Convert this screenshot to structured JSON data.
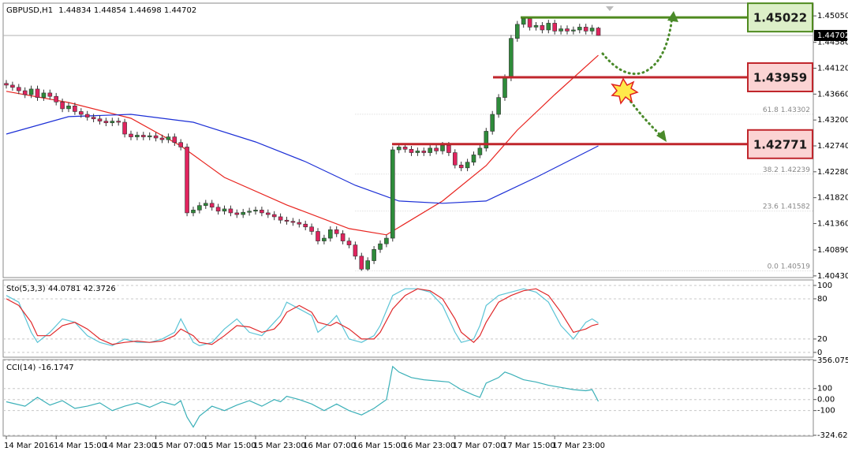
{
  "chart_data": [
    {
      "type": "candlestick",
      "title": "GBPUSD,H1",
      "categories": [
        "14 Mar 2016",
        null,
        null,
        null,
        null,
        null,
        null,
        null,
        "14 Mar 15:00",
        null,
        null,
        null,
        null,
        null,
        null,
        null,
        "14 Mar 23:00",
        null,
        null,
        null,
        null,
        null,
        null,
        null,
        "15 Mar 07:00",
        null,
        null,
        null,
        null,
        null,
        null,
        null,
        "15 Mar 15:00",
        null,
        null,
        null,
        null,
        null,
        null,
        null,
        "15 Mar 23:00",
        null,
        null,
        null,
        null,
        null,
        null,
        null,
        "16 Mar 07:00",
        null,
        null,
        null,
        null,
        null,
        null,
        null,
        "16 Mar 15:00",
        null,
        null,
        null,
        null,
        null,
        null,
        null,
        "16 Mar 23:00",
        null,
        null,
        null,
        null,
        null,
        null,
        null,
        "17 Mar 07:00",
        null,
        null,
        null,
        null,
        null,
        null,
        null,
        "17 Mar 15:00",
        null,
        null,
        null,
        null,
        null,
        null,
        null,
        "17 Mar 23:00",
        null,
        null,
        null,
        null,
        null,
        null,
        null
      ],
      "open": [
        1.4385,
        1.4382,
        1.4378,
        1.4372,
        1.4365,
        1.4375,
        1.436,
        1.4368,
        1.4362,
        1.4352,
        1.434,
        1.4345,
        1.4335,
        1.433,
        1.4325,
        1.4322,
        1.4318,
        1.4315,
        1.4318,
        1.4316,
        1.4295,
        1.429,
        1.4293,
        1.429,
        1.4292,
        1.4288,
        1.4285,
        1.429,
        1.428,
        1.4272,
        1.4155,
        1.416,
        1.4168,
        1.4172,
        1.4165,
        1.4158,
        1.4162,
        1.4155,
        1.4152,
        1.4156,
        1.4158,
        1.416,
        1.4155,
        1.4152,
        1.4148,
        1.4142,
        1.414,
        1.4138,
        1.4135,
        1.413,
        1.4122,
        1.4105,
        1.411,
        1.4125,
        1.4118,
        1.4105,
        1.4098,
        1.4078,
        1.4055,
        1.407,
        1.409,
        1.41,
        1.411,
        1.4267,
        1.4272,
        1.4268,
        1.4262,
        1.4265,
        1.4262,
        1.427,
        1.4265,
        1.4275,
        1.4262,
        1.424,
        1.4235,
        1.4245,
        1.4258,
        1.427,
        1.43,
        1.433,
        1.436,
        1.4395,
        1.4465,
        1.449,
        1.45,
        1.4485,
        1.4488,
        1.448,
        1.4492,
        1.4478,
        1.4482,
        1.4478,
        1.448,
        1.4485,
        1.4478,
        1.44834
      ],
      "high": [
        1.4391,
        1.4388,
        1.4384,
        1.4378,
        1.4381,
        1.4381,
        1.4374,
        1.4374,
        1.4368,
        1.4358,
        1.4351,
        1.4351,
        1.4341,
        1.4336,
        1.4331,
        1.4328,
        1.4324,
        1.4324,
        1.4324,
        1.4322,
        1.4301,
        1.4299,
        1.4299,
        1.4298,
        1.4298,
        1.4294,
        1.4296,
        1.4296,
        1.4286,
        1.4278,
        1.4166,
        1.4174,
        1.4178,
        1.4178,
        1.4171,
        1.4168,
        1.4168,
        1.4161,
        1.4162,
        1.4164,
        1.4166,
        1.4166,
        1.4161,
        1.4158,
        1.4154,
        1.4148,
        1.4146,
        1.4144,
        1.4141,
        1.4136,
        1.4128,
        1.4116,
        1.4131,
        1.4131,
        1.4124,
        1.4111,
        1.4104,
        1.4084,
        1.4076,
        1.4096,
        1.4106,
        1.4116,
        1.4273,
        1.4278,
        1.4278,
        1.4274,
        1.4271,
        1.4271,
        1.4276,
        1.4276,
        1.4281,
        1.4281,
        1.4268,
        1.4246,
        1.4251,
        1.4264,
        1.4276,
        1.4306,
        1.4336,
        1.4366,
        1.4401,
        1.4471,
        1.4496,
        1.4502,
        1.4502,
        1.4494,
        1.4494,
        1.4498,
        1.4498,
        1.4488,
        1.4488,
        1.4486,
        1.4491,
        1.4491,
        1.4489,
        1.44854
      ],
      "low": [
        1.4376,
        1.4372,
        1.4366,
        1.4359,
        1.4359,
        1.4354,
        1.4354,
        1.4356,
        1.4346,
        1.4334,
        1.4334,
        1.4329,
        1.4324,
        1.4319,
        1.4316,
        1.4312,
        1.4309,
        1.4309,
        1.431,
        1.4289,
        1.4284,
        1.4284,
        1.4284,
        1.4284,
        1.4282,
        1.4279,
        1.4279,
        1.4274,
        1.4266,
        1.4149,
        1.4149,
        1.4154,
        1.4162,
        1.4159,
        1.4152,
        1.4152,
        1.4149,
        1.4146,
        1.4146,
        1.415,
        1.4152,
        1.4149,
        1.4146,
        1.4142,
        1.4136,
        1.4134,
        1.4132,
        1.4129,
        1.4124,
        1.4116,
        1.4099,
        1.4099,
        1.4104,
        1.4112,
        1.4099,
        1.4092,
        1.4072,
        1.4052,
        1.4052,
        1.4064,
        1.4084,
        1.4094,
        1.4104,
        1.4261,
        1.4262,
        1.4256,
        1.4256,
        1.4256,
        1.4256,
        1.4259,
        1.4259,
        1.4256,
        1.4234,
        1.4229,
        1.4229,
        1.4239,
        1.4252,
        1.4264,
        1.4294,
        1.4324,
        1.4354,
        1.4389,
        1.4459,
        1.4484,
        1.4479,
        1.4479,
        1.4474,
        1.4474,
        1.4472,
        1.4472,
        1.4472,
        1.4472,
        1.4474,
        1.4472,
        1.4472,
        1.44698
      ],
      "close": [
        1.4382,
        1.4378,
        1.4372,
        1.4365,
        1.4375,
        1.436,
        1.4368,
        1.4362,
        1.4352,
        1.434,
        1.4345,
        1.4335,
        1.433,
        1.4325,
        1.4322,
        1.4318,
        1.4315,
        1.4318,
        1.4316,
        1.4295,
        1.429,
        1.4293,
        1.429,
        1.4292,
        1.4288,
        1.4285,
        1.429,
        1.428,
        1.4272,
        1.4155,
        1.416,
        1.4168,
        1.4172,
        1.4165,
        1.4158,
        1.4162,
        1.4155,
        1.4152,
        1.4156,
        1.4158,
        1.416,
        1.4155,
        1.4152,
        1.4148,
        1.4142,
        1.414,
        1.4138,
        1.4135,
        1.413,
        1.4122,
        1.4105,
        1.411,
        1.4125,
        1.4118,
        1.4105,
        1.4098,
        1.4078,
        1.4055,
        1.407,
        1.409,
        1.41,
        1.411,
        1.4267,
        1.4272,
        1.4268,
        1.4262,
        1.4265,
        1.4262,
        1.427,
        1.4265,
        1.4275,
        1.4262,
        1.424,
        1.4235,
        1.4245,
        1.4258,
        1.427,
        1.43,
        1.433,
        1.436,
        1.4395,
        1.4465,
        1.449,
        1.45,
        1.4485,
        1.4488,
        1.448,
        1.4492,
        1.4478,
        1.4482,
        1.4478,
        1.448,
        1.4485,
        1.4478,
        1.44834,
        1.44702
      ],
      "up_color": "#2e8b3a",
      "down_color": "#e0245e",
      "lines": [
        {
          "color": "#e8241f",
          "x": [
            0,
            10,
            20,
            28,
            35,
            45,
            55,
            61,
            70,
            77,
            82,
            88,
            95
          ],
          "values": [
            1.4371,
            1.4351,
            1.4323,
            1.4274,
            1.4218,
            1.4169,
            1.4127,
            1.4116,
            1.4176,
            1.4239,
            1.4302,
            1.4365,
            1.4435
          ]
        },
        {
          "color": "#1c2fd6",
          "x": [
            0,
            10,
            20,
            30,
            40,
            48,
            56,
            63,
            70,
            77,
            85,
            95
          ],
          "values": [
            1.4295,
            1.4326,
            1.433,
            1.4316,
            1.4281,
            1.4246,
            1.4204,
            1.4176,
            1.4172,
            1.4176,
            1.4218,
            1.4274
          ]
        }
      ],
      "fib": [
        {
          "label": "61.8",
          "value": 1.43302
        },
        {
          "label": "38.2",
          "value": 1.42239
        },
        {
          "label": "23.6",
          "value": 1.41582
        },
        {
          "label": "0.0",
          "value": 1.40519
        }
      ],
      "levels": [
        {
          "value": 1.45022,
          "color": "#4f8a1f",
          "fill": "#dcefc8"
        },
        {
          "value": 1.43959,
          "color": "#c0262c",
          "fill": "#fbd3d3"
        },
        {
          "value": 1.42771,
          "color": "#c0262c",
          "fill": "#fbd3d3"
        }
      ],
      "ylim": [
        1.404,
        1.4522
      ],
      "yticks": [
        {
          "value": 1.4505,
          "label": "1.45050"
        },
        {
          "value": 1.4458,
          "label": "1.44580"
        },
        {
          "value": 1.4412,
          "label": "1.44120"
        },
        {
          "value": 1.4366,
          "label": "1.43660"
        },
        {
          "value": 1.432,
          "label": "1.43200"
        },
        {
          "value": 1.4274,
          "label": "1.42740"
        },
        {
          "value": 1.4228,
          "label": "1.42280"
        },
        {
          "value": 1.4182,
          "label": "1.41820"
        },
        {
          "value": 1.4136,
          "label": "1.41360"
        },
        {
          "value": 1.4089,
          "label": "1.40890"
        },
        {
          "value": 1.4043,
          "label": "1.40430"
        }
      ]
    },
    {
      "type": "line",
      "title": "Sto(5,3,3)",
      "x": [
        0,
        2,
        4,
        5,
        7,
        9,
        11,
        13,
        15,
        17,
        19,
        21,
        23,
        25,
        27,
        28,
        30,
        31,
        33,
        35,
        37,
        39,
        41,
        43,
        44,
        45,
        47,
        49,
        50,
        52,
        53,
        55,
        57,
        59,
        60,
        62,
        64,
        66,
        68,
        70,
        72,
        73,
        75,
        76,
        77,
        79,
        81,
        83,
        85,
        87,
        89,
        90,
        91,
        93,
        94,
        95
      ],
      "series": [
        {
          "color": "#5bc4d6",
          "values": [
            85,
            75,
            30,
            15,
            30,
            50,
            45,
            25,
            15,
            10,
            20,
            15,
            15,
            20,
            30,
            50,
            15,
            10,
            15,
            35,
            50,
            30,
            25,
            45,
            55,
            75,
            65,
            55,
            30,
            45,
            55,
            20,
            15,
            25,
            40,
            85,
            95,
            95,
            90,
            70,
            30,
            15,
            20,
            40,
            70,
            85,
            90,
            95,
            90,
            75,
            40,
            30,
            20,
            45,
            50,
            44.0781
          ]
        },
        {
          "color": "#e0282a",
          "values": [
            80,
            70,
            45,
            25,
            25,
            40,
            45,
            35,
            20,
            12,
            15,
            17,
            15,
            17,
            25,
            35,
            25,
            15,
            12,
            25,
            40,
            38,
            30,
            35,
            45,
            60,
            70,
            60,
            45,
            40,
            45,
            35,
            20,
            20,
            30,
            65,
            85,
            95,
            92,
            80,
            50,
            30,
            15,
            25,
            45,
            75,
            85,
            92,
            95,
            85,
            60,
            45,
            30,
            35,
            40,
            42.3726
          ]
        }
      ],
      "ylim": [
        -6,
        107
      ],
      "yticks": [
        100,
        80,
        20,
        0
      ],
      "grid": true
    },
    {
      "type": "line",
      "title": "CCI(14)",
      "x": [
        0,
        3,
        5,
        7,
        9,
        11,
        13,
        15,
        17,
        19,
        21,
        23,
        25,
        27,
        28,
        29,
        30,
        31,
        33,
        35,
        37,
        39,
        41,
        43,
        44,
        45,
        47,
        49,
        51,
        53,
        55,
        57,
        59,
        61,
        62,
        63,
        65,
        67,
        69,
        71,
        73,
        75,
        76,
        77,
        79,
        80,
        81,
        83,
        85,
        87,
        89,
        91,
        93,
        94,
        95
      ],
      "series": [
        {
          "color": "#3bb0b8",
          "values": [
            -20,
            -60,
            20,
            -50,
            -10,
            -80,
            -60,
            -30,
            -100,
            -60,
            -30,
            -70,
            -20,
            -50,
            -10,
            -160,
            -250,
            -150,
            -60,
            -100,
            -50,
            -10,
            -60,
            0,
            -20,
            30,
            0,
            -40,
            -100,
            -40,
            -100,
            -140,
            -80,
            0,
            300,
            250,
            200,
            180,
            170,
            160,
            90,
            40,
            20,
            150,
            200,
            250,
            230,
            180,
            160,
            130,
            110,
            90,
            80,
            90,
            -16.1747
          ]
        }
      ],
      "ylim": [
        -324.6258,
        356.075
      ],
      "yticks": [
        356.075,
        100,
        {
          "value": 0,
          "label": "0.00"
        },
        -100,
        -324.6258
      ],
      "grid": true
    }
  ]
}
